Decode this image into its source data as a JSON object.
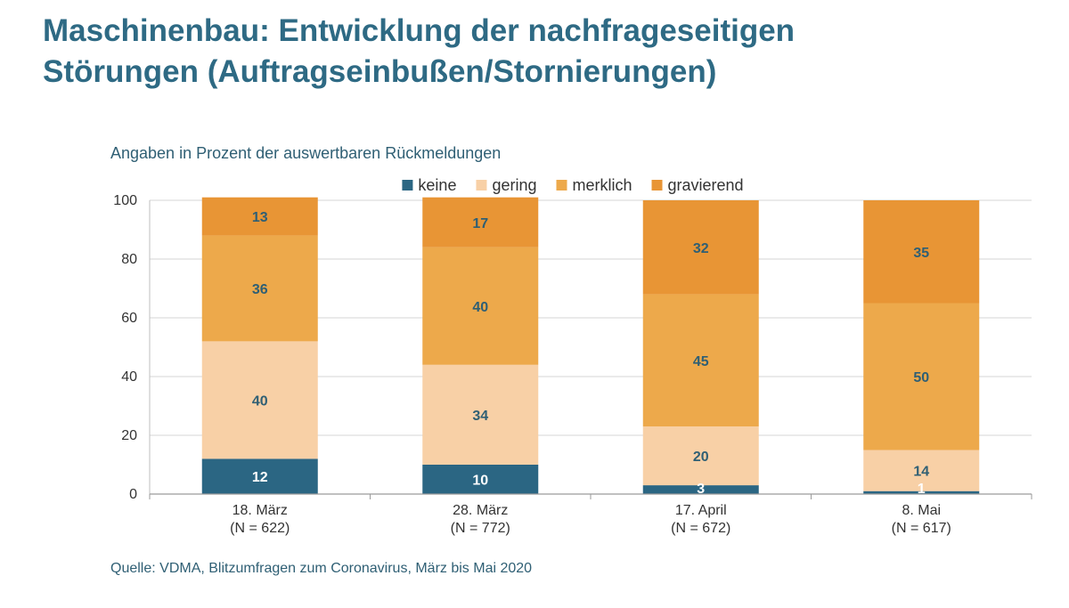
{
  "header": {
    "title_line1": "Maschinenbau: Entwicklung der nachfrageseitigen",
    "title_line2": "Störungen (Auftragseinbußen/Stornierungen)"
  },
  "footer": {
    "source": "Quelle: VDMA, Blitzumfragen zum Coronavirus, März bis Mai 2020"
  },
  "chart_data": {
    "type": "bar",
    "stacked": true,
    "subtitle": "Angaben in Prozent der auswertbaren Rückmeldungen",
    "categories": [
      "18. März",
      "28. März",
      "17. April",
      "8. Mai"
    ],
    "category_notes": [
      "(N = 622)",
      "(N = 772)",
      "(N = 672)",
      "(N = 617)"
    ],
    "ylim": [
      0,
      100
    ],
    "yticks": [
      0,
      20,
      40,
      60,
      80,
      100
    ],
    "grid": true,
    "legend_position": "top",
    "series": [
      {
        "name": "keine",
        "color": "#2b6683",
        "label_color": "#ffffff",
        "values": [
          12,
          10,
          3,
          1
        ]
      },
      {
        "name": "gering",
        "color": "#f8d0a6",
        "label_color": "#2f5f74",
        "values": [
          40,
          34,
          20,
          14
        ]
      },
      {
        "name": "merklich",
        "color": "#eda94b",
        "label_color": "#2f5f74",
        "values": [
          36,
          40,
          45,
          50
        ]
      },
      {
        "name": "gravierend",
        "color": "#e89535",
        "label_color": "#2f5f74",
        "values": [
          13,
          17,
          32,
          35
        ]
      }
    ]
  }
}
